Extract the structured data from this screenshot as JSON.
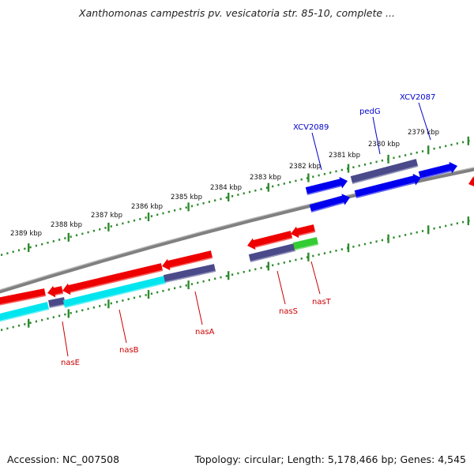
{
  "title": "Xanthomonas campestris pv. vesicatoria str. 85-10, complete ...",
  "footer": {
    "accession": "Accession: NC_007508",
    "summary": "Topology: circular; Length: 5,178,466 bp; Genes: 4,545"
  },
  "scale_labels": [
    "2389 kbp",
    "2388 kbp",
    "2387 kbp",
    "2386 kbp",
    "2385 kbp",
    "2384 kbp",
    "2383 kbp",
    "2382 kbp",
    "2381 kbp",
    "2380 kbp",
    "2379 kbp"
  ],
  "genes_forward": [
    "XCV2089",
    "pedG",
    "XCV2087"
  ],
  "genes_reverse": [
    "nasE",
    "nasB",
    "nasA",
    "nasS",
    "nasT"
  ],
  "colors": {
    "backbone": "#808080",
    "scale_ticks": "#2e8b2e",
    "forward_gene": "#0000ee",
    "reverse_gene": "#ee0000",
    "cds_gray_blue": "#4a4a8a",
    "cds_cyan": "#00e5ee",
    "cds_green": "#33cc33",
    "forward_label": "#0000cc",
    "reverse_label": "#cc0000"
  }
}
